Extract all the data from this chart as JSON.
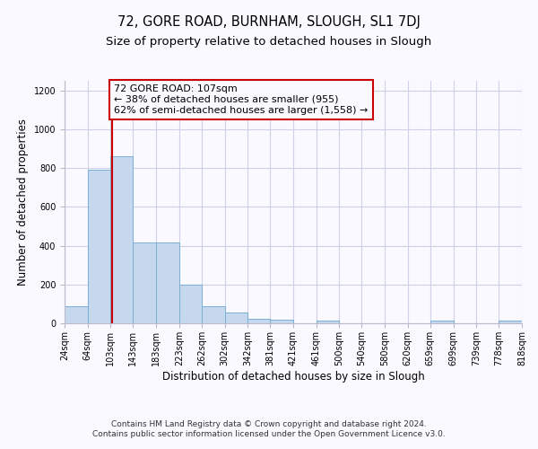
{
  "title": "72, GORE ROAD, BURNHAM, SLOUGH, SL1 7DJ",
  "subtitle": "Size of property relative to detached houses in Slough",
  "xlabel": "Distribution of detached houses by size in Slough",
  "ylabel": "Number of detached properties",
  "footer_line1": "Contains HM Land Registry data © Crown copyright and database right 2024.",
  "footer_line2": "Contains public sector information licensed under the Open Government Licence v3.0.",
  "bar_color": "#c5d8ed",
  "bar_edge_color": "#7aafd4",
  "annotation_box_color": "#cc0000",
  "vline_color": "#cc0000",
  "grid_color": "#d0d0e8",
  "background_color": "#f9f9ff",
  "property_size_sqm": 107,
  "annotation_line1": "72 GORE ROAD: 107sqm",
  "annotation_line2": "← 38% of detached houses are smaller (955)",
  "annotation_line3": "62% of semi-detached houses are larger (1,558) →",
  "bins": [
    24,
    64,
    103,
    143,
    183,
    223,
    262,
    302,
    342,
    381,
    421,
    461,
    500,
    540,
    580,
    620,
    659,
    699,
    739,
    778,
    818
  ],
  "counts": [
    90,
    790,
    860,
    415,
    415,
    200,
    90,
    55,
    25,
    20,
    0,
    15,
    0,
    0,
    0,
    0,
    15,
    0,
    0,
    15,
    0
  ],
  "ylim": [
    0,
    1250
  ],
  "yticks": [
    0,
    200,
    400,
    600,
    800,
    1000,
    1200
  ],
  "title_fontsize": 10.5,
  "subtitle_fontsize": 9.5,
  "axis_label_fontsize": 8.5,
  "tick_fontsize": 7,
  "annotation_fontsize": 8,
  "footer_fontsize": 6.5
}
